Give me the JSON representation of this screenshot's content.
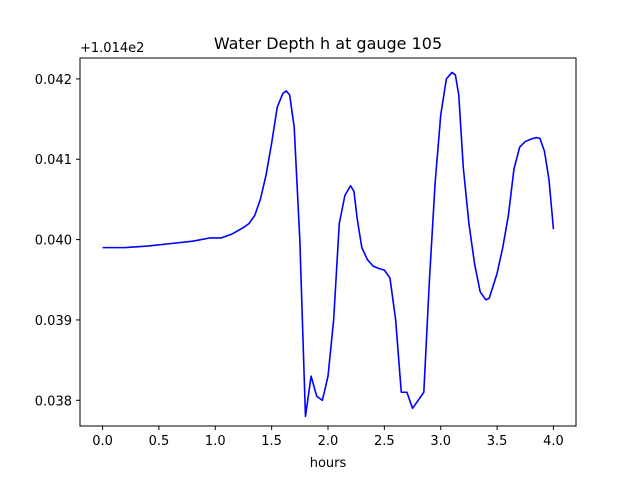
{
  "chart_data": {
    "type": "line",
    "title": "Water Depth h at gauge 105",
    "xlabel": "hours",
    "ylabel": "",
    "offset_label": "+1.014e2",
    "xlim": [
      -0.2,
      4.2
    ],
    "ylim": [
      0.03768,
      0.04226
    ],
    "xticks": [
      0.0,
      0.5,
      1.0,
      1.5,
      2.0,
      2.5,
      3.0,
      3.5,
      4.0
    ],
    "xtick_labels": [
      "0.0",
      "0.5",
      "1.0",
      "1.5",
      "2.0",
      "2.5",
      "3.0",
      "3.5",
      "4.0"
    ],
    "yticks": [
      0.038,
      0.039,
      0.04,
      0.041,
      0.042
    ],
    "ytick_labels": [
      "0.038",
      "0.039",
      "0.040",
      "0.041",
      "0.042"
    ],
    "grid": false,
    "line_color": "#0000ff",
    "series": [
      {
        "x": [
          0.0,
          0.2,
          0.4,
          0.6,
          0.8,
          0.95,
          1.05,
          1.15,
          1.25,
          1.3,
          1.35,
          1.4,
          1.45,
          1.5,
          1.55,
          1.6,
          1.63,
          1.66,
          1.7,
          1.75,
          1.8,
          1.85,
          1.9,
          1.95,
          2.0,
          2.05,
          2.1,
          2.15,
          2.2,
          2.23,
          2.26,
          2.3,
          2.35,
          2.4,
          2.45,
          2.5,
          2.55,
          2.6,
          2.65,
          2.7,
          2.75,
          2.8,
          2.85,
          2.9,
          2.95,
          3.0,
          3.05,
          3.1,
          3.13,
          3.16,
          3.2,
          3.25,
          3.3,
          3.35,
          3.4,
          3.43,
          3.46,
          3.5,
          3.55,
          3.6,
          3.65,
          3.7,
          3.75,
          3.8,
          3.85,
          3.88,
          3.92,
          3.96,
          4.0
        ],
        "y": [
          0.0399,
          0.0399,
          0.03992,
          0.03995,
          0.03998,
          0.04002,
          0.04002,
          0.04007,
          0.04015,
          0.0402,
          0.0403,
          0.0405,
          0.0408,
          0.0412,
          0.04165,
          0.04182,
          0.04185,
          0.0418,
          0.0414,
          0.04,
          0.0378,
          0.0383,
          0.03805,
          0.038,
          0.0383,
          0.039,
          0.0402,
          0.04055,
          0.04067,
          0.0406,
          0.04025,
          0.0399,
          0.03975,
          0.03967,
          0.03964,
          0.03962,
          0.03952,
          0.039,
          0.0381,
          0.0381,
          0.0379,
          0.038,
          0.0381,
          0.0395,
          0.0407,
          0.04155,
          0.042,
          0.04208,
          0.04205,
          0.0418,
          0.0409,
          0.0402,
          0.0397,
          0.03935,
          0.03925,
          0.03927,
          0.0394,
          0.03958,
          0.0399,
          0.0403,
          0.04088,
          0.04115,
          0.04122,
          0.04125,
          0.04127,
          0.04126,
          0.0411,
          0.04075,
          0.04013
        ]
      }
    ]
  }
}
